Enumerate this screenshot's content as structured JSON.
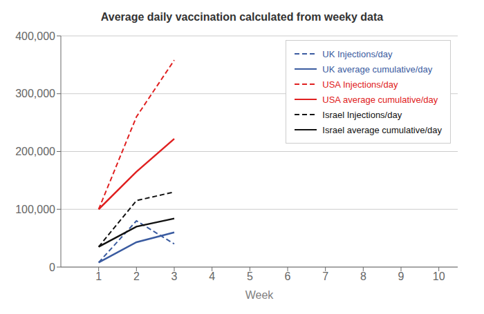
{
  "chart_data": {
    "type": "line",
    "title": "Average daily vaccination calculated from weeky data",
    "xlabel": "Week",
    "x": [
      1,
      2,
      3
    ],
    "xlim": [
      0,
      10.5
    ],
    "xticks": [
      1,
      2,
      3,
      4,
      5,
      6,
      7,
      8,
      9,
      10
    ],
    "ylim": [
      0,
      400000
    ],
    "yticks": [
      0,
      {
        "value": 100000,
        "label": "100,000"
      },
      {
        "value": 200000,
        "label": "200,000"
      },
      {
        "value": 300000,
        "label": "300,000"
      },
      {
        "value": 400000,
        "label": "400,000"
      }
    ],
    "grid": true,
    "legend": "upper right",
    "series": [
      {
        "name": "UK Injections/day",
        "color": "#3a5ba0",
        "line_style": "dashed",
        "values": [
          8000,
          80000,
          40000
        ]
      },
      {
        "name": "UK average cumulative/day",
        "color": "#3a5ba0",
        "line_style": "solid",
        "values": [
          8000,
          43000,
          60000
        ]
      },
      {
        "name": "USA Injections/day",
        "color": "#e02020",
        "line_style": "dashed",
        "values": [
          100000,
          260000,
          358000
        ]
      },
      {
        "name": "USA average cumulative/day",
        "color": "#e02020",
        "line_style": "solid",
        "values": [
          100000,
          165000,
          222000
        ]
      },
      {
        "name": "Israel Injections/day",
        "color": "#111111",
        "line_style": "dashed",
        "values": [
          35000,
          115000,
          130000
        ]
      },
      {
        "name": "Israel average cumulative/day",
        "color": "#111111",
        "line_style": "solid",
        "values": [
          35000,
          70000,
          84000
        ]
      }
    ]
  }
}
